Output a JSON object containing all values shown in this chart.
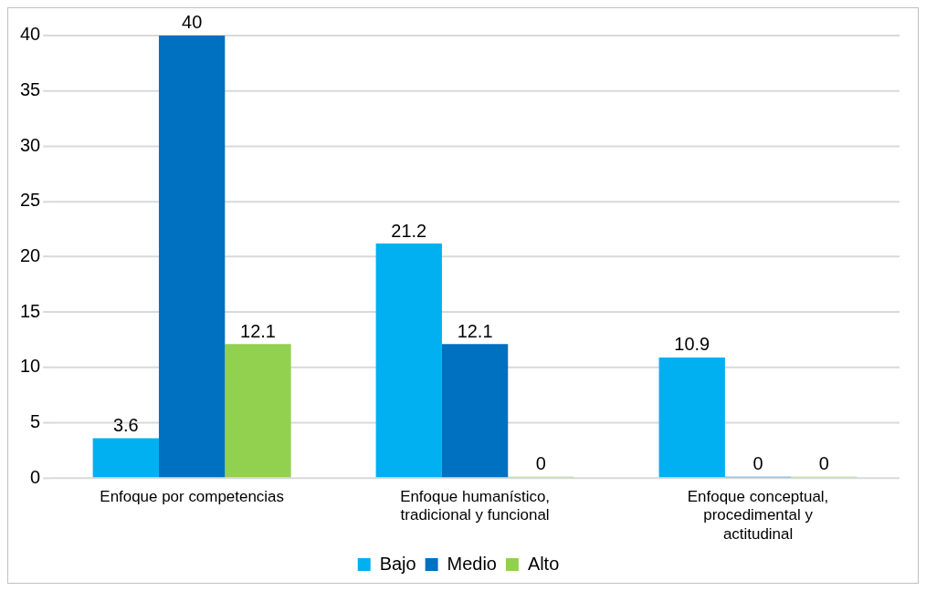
{
  "chart_data": {
    "type": "bar",
    "categories": [
      "Enfoque por competencias",
      "Enfoque humanístico, tradicional y funcional",
      "Enfoque conceptual, procedimental y actitudinal"
    ],
    "series": [
      {
        "name": "Bajo",
        "color": "#00b0f0",
        "values": [
          3.6,
          21.2,
          10.9
        ]
      },
      {
        "name": "Medio",
        "color": "#0070c0",
        "values": [
          40,
          12.1,
          0
        ]
      },
      {
        "name": "Alto",
        "color": "#92d050",
        "values": [
          12.1,
          0,
          0
        ]
      }
    ],
    "ylim": [
      0,
      40
    ],
    "yticks": [
      0,
      5,
      10,
      15,
      20,
      25,
      30,
      35,
      40
    ],
    "grid": "y",
    "legend": "bottom",
    "data_labels": true
  }
}
